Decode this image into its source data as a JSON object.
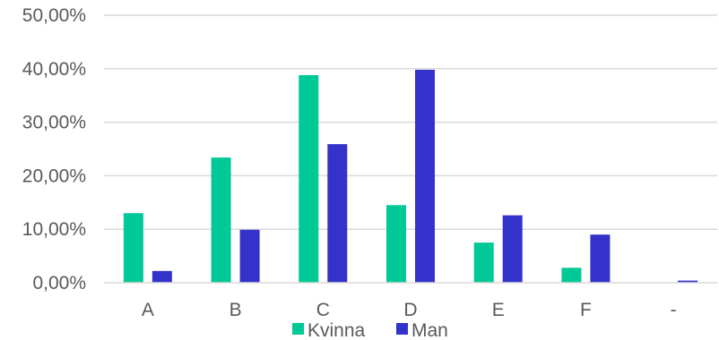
{
  "chart_data": {
    "type": "bar",
    "title": "",
    "xlabel": "",
    "ylabel": "",
    "categories": [
      "A",
      "B",
      "C",
      "D",
      "E",
      "F",
      "-"
    ],
    "series": [
      {
        "name": "Kvinna",
        "color": "#00C896",
        "values": [
          13.0,
          23.4,
          38.8,
          14.5,
          7.5,
          2.8,
          0.0
        ]
      },
      {
        "name": "Man",
        "color": "#3333CC",
        "values": [
          2.2,
          9.9,
          25.9,
          39.8,
          12.6,
          9.0,
          0.4
        ]
      }
    ],
    "ylim": [
      0,
      50
    ],
    "yticks": [
      "0,00%",
      "10,00%",
      "20,00%",
      "30,00%",
      "40,00%",
      "50,00%"
    ],
    "grid": true,
    "legend_position": "bottom"
  }
}
